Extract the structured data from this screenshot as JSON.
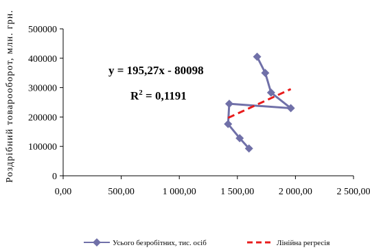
{
  "chart_data": {
    "type": "scatter",
    "ylabel": "Роздрібний товарооборот, млн. грн.",
    "xlabel": "",
    "xlim": [
      0,
      2500
    ],
    "ylim": [
      0,
      500000
    ],
    "x_ticks": [
      "0,00",
      "500,00",
      "1 000,00",
      "1 500,00",
      "2 000,00",
      "2 500,00"
    ],
    "y_ticks": [
      "0",
      "100000",
      "200000",
      "300000",
      "400000",
      "500000"
    ],
    "series": [
      {
        "name": "Усього безробітних, тис. осіб",
        "color": "#7070a8",
        "marker": "diamond",
        "line": "solid",
        "points": [
          {
            "x": 1600,
            "y": 93000
          },
          {
            "x": 1520,
            "y": 128000
          },
          {
            "x": 1420,
            "y": 176000
          },
          {
            "x": 1430,
            "y": 245000
          },
          {
            "x": 1960,
            "y": 230000
          },
          {
            "x": 1790,
            "y": 283000
          },
          {
            "x": 1740,
            "y": 350000
          },
          {
            "x": 1670,
            "y": 405000
          }
        ]
      },
      {
        "name": "Лінійна регресія",
        "color": "#e81c1c",
        "line": "dashed",
        "points": [
          {
            "x": 1420,
            "y": 197000
          },
          {
            "x": 1960,
            "y": 295000
          }
        ]
      }
    ],
    "annotations": {
      "equation": "y = 195,27x - 80098",
      "r2_base": "R",
      "r2_exp": "2",
      "r2_value": " = 0,1191"
    },
    "legend_position": "bottom"
  }
}
